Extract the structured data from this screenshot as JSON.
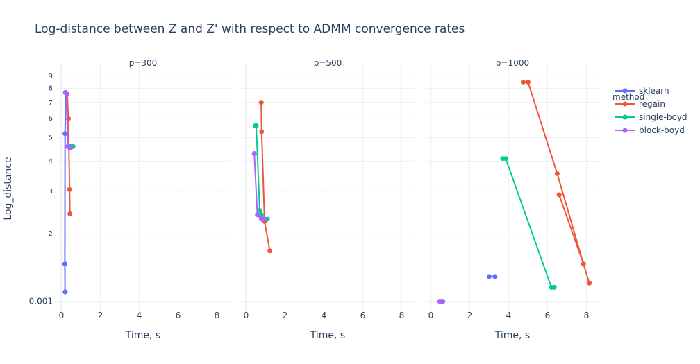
{
  "chart_data": {
    "type": "line",
    "title": "Log-distance between Z and Z' with respect to ADMM convergence rates",
    "ylabel": "Log_distance",
    "yscale": "log",
    "legend": {
      "title": "method",
      "placement": "top-right"
    },
    "x_ticks": [
      "0",
      "2",
      "4",
      "6",
      "8"
    ],
    "y_ticks": [
      "0.001",
      "2",
      "3",
      "4",
      "5",
      "6",
      "7",
      "8",
      "9"
    ],
    "series_meta": [
      {
        "name": "sklearn",
        "color": "#636efa"
      },
      {
        "name": "regain",
        "color": "#ef553b"
      },
      {
        "name": "single-boyd",
        "color": "#00cc96"
      },
      {
        "name": "block-boyd",
        "color": "#ab63fa"
      }
    ],
    "panels": [
      {
        "title": "p=300",
        "xlabel": "Time, s",
        "xlim": [
          -0.3,
          8.7
        ],
        "series": [
          {
            "name": "sklearn",
            "x": [
              0.22,
              0.19,
              0.18,
              0.19,
              0.2
            ],
            "y": [
              7.7,
              5.2,
              1.5,
              1.15,
              1.15
            ]
          },
          {
            "name": "regain",
            "x": [
              0.3,
              0.36,
              0.42,
              0.44
            ],
            "y": [
              7.6,
              6.0,
              3.05,
              2.42
            ]
          },
          {
            "name": "single-boyd",
            "x": [
              0.45,
              0.52,
              0.6
            ],
            "y": [
              4.6,
              4.6,
              4.6
            ]
          },
          {
            "name": "block-boyd",
            "x": [
              0.2,
              0.26,
              0.32,
              0.42,
              0.48
            ],
            "y": [
              7.7,
              7.6,
              4.6,
              4.55,
              4.55
            ]
          }
        ]
      },
      {
        "title": "p=500",
        "xlabel": "Time, s",
        "xlim": [
          -0.3,
          8.7
        ],
        "series": [
          {
            "name": "regain",
            "x": [
              0.78,
              0.8,
              0.95,
              1.22
            ],
            "y": [
              7.0,
              5.3,
              2.25,
              1.7
            ]
          },
          {
            "name": "single-boyd",
            "x": [
              0.47,
              0.52,
              0.7,
              0.78,
              0.95,
              1.1
            ],
            "y": [
              5.6,
              5.6,
              2.5,
              2.4,
              2.3,
              2.3
            ]
          },
          {
            "name": "block-boyd",
            "x": [
              0.42,
              0.58,
              0.78,
              0.86,
              0.95
            ],
            "y": [
              4.3,
              2.4,
              2.3,
              2.3,
              2.3
            ]
          }
        ]
      },
      {
        "title": "p=1000",
        "xlabel": "Time, s",
        "xlim": [
          -0.3,
          8.7
        ],
        "series": [
          {
            "name": "sklearn",
            "x": [
              3.0,
              3.3
            ],
            "y": [
              1.33,
              1.33
            ]
          },
          {
            "name": "regain",
            "x": [
              4.75,
              5.0,
              6.5,
              7.85,
              8.15,
              7.85,
              6.6
            ],
            "y": [
              8.5,
              8.5,
              3.55,
              1.5,
              1.25,
              1.5,
              2.9
            ]
          },
          {
            "name": "single-boyd",
            "x": [
              3.7,
              3.85,
              6.2,
              6.35
            ],
            "y": [
              4.1,
              4.1,
              1.2,
              1.2
            ]
          },
          {
            "name": "block-boyd",
            "x": [
              0.45,
              0.52,
              0.62
            ],
            "y": [
              1.05,
              1.05,
              1.05
            ]
          }
        ]
      }
    ]
  }
}
